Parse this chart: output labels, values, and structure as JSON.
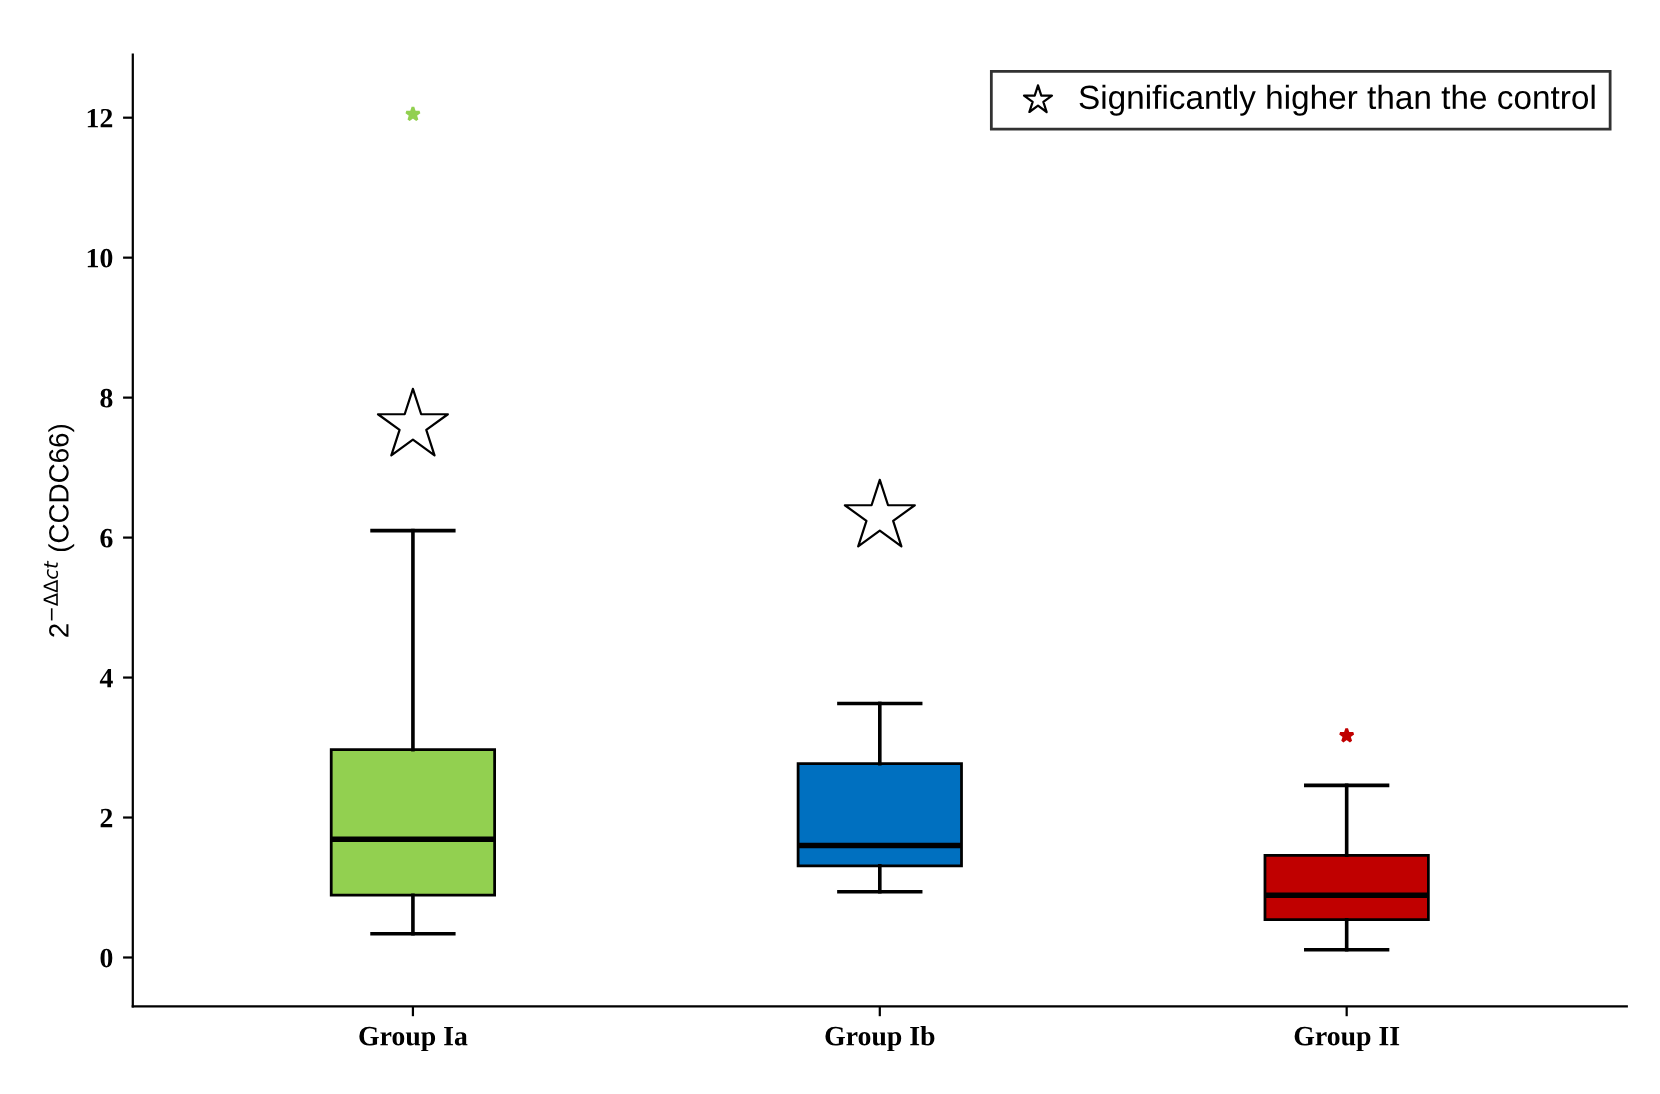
{
  "chart_data": {
    "type": "box",
    "ylabel": "2$^{−ΔΔct}$ (CCDC66)",
    "categories": [
      "Group Ia",
      "Group Ib",
      "Group II"
    ],
    "boxes": [
      {
        "low": 0.34,
        "q1": 0.89,
        "median": 1.69,
        "q3": 2.97,
        "high": 6.1,
        "outliers": [
          12.05
        ]
      },
      {
        "low": 0.94,
        "q1": 1.31,
        "median": 1.6,
        "q3": 2.77,
        "high": 3.63
      },
      {
        "low": 0.11,
        "q1": 0.54,
        "median": 0.89,
        "q3": 1.46,
        "high": 2.46,
        "outliers": [
          3.17
        ]
      }
    ],
    "colors": [
      "#92d050",
      "#0070c0",
      "#c00000"
    ],
    "series": [
      {
        "type": "scatter",
        "name": "Significantly higher than the control",
        "x": [
          "Group Ia",
          "Group Ib"
        ],
        "values": [
          7.6,
          6.3
        ],
        "color": "#ffffff"
      }
    ],
    "marker": "star",
    "ylim": [
      -0.7,
      12.9
    ],
    "yticks": [
      0,
      2,
      4,
      6,
      8,
      10,
      12
    ],
    "grid": false,
    "legend": "top right"
  }
}
